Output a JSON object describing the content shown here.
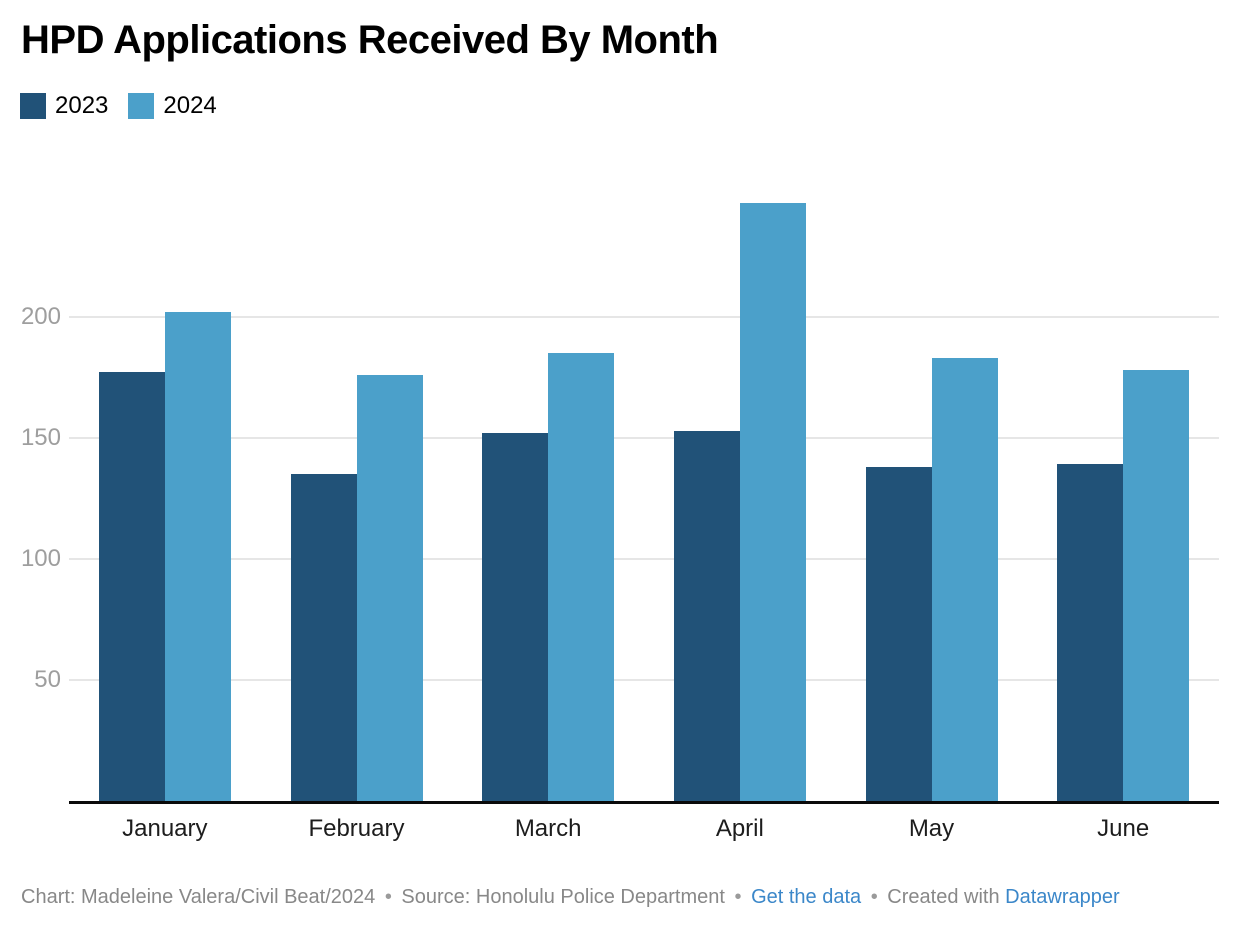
{
  "title": "HPD Applications Received By Month",
  "legend": {
    "items": [
      {
        "label": "2023",
        "color": "#215278"
      },
      {
        "label": "2024",
        "color": "#4ba0ca"
      }
    ]
  },
  "chart_data": {
    "type": "bar",
    "title": "HPD Applications Received By Month",
    "categories": [
      "January",
      "February",
      "March",
      "April",
      "May",
      "June"
    ],
    "series": [
      {
        "name": "2023",
        "color": "#215278",
        "values": [
          177,
          135,
          152,
          153,
          138,
          139
        ]
      },
      {
        "name": "2024",
        "color": "#4ba0ca",
        "values": [
          202,
          176,
          185,
          247,
          183,
          178
        ]
      }
    ],
    "xlabel": "",
    "ylabel": "",
    "yticks": [
      50,
      100,
      150,
      200
    ],
    "ylim": [
      0,
      273
    ],
    "grid": true,
    "gridline_color": "#e6e6e6",
    "axis_line_color": "#0a0a0a",
    "tick_label_color": "#9e9e9e",
    "legend_position": "top-left"
  },
  "footer": {
    "credit": "Chart: Madeleine Valera/Civil Beat/2024",
    "separator": "•",
    "source": "Source: Honolulu Police Department",
    "get_data_label": "Get the data",
    "created_with": "Created with",
    "tool_label": "Datawrapper",
    "link_color": "#3b87c9"
  }
}
